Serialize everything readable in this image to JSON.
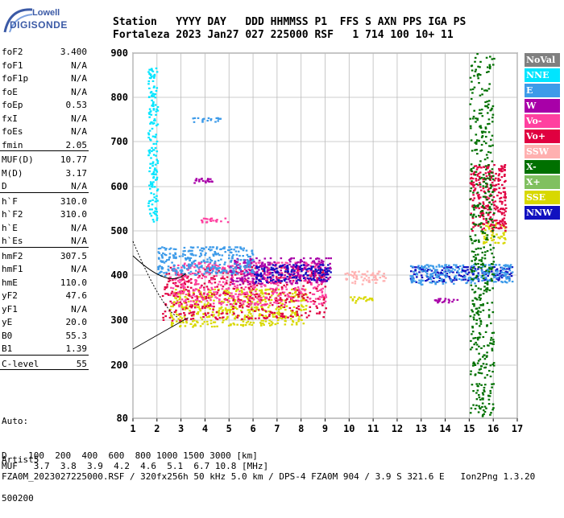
{
  "logo": {
    "line1": "Lowell",
    "line2": "DIGISONDE"
  },
  "header": {
    "labels_line": "Station   YYYY DAY   DDD HHMMSS P1  FFS S AXN PPS IGA PS",
    "values_line": "Fortaleza 2023 Jan27 027 225000 RSF   1 714 100 10+ 11"
  },
  "params": [
    {
      "label": "foF2",
      "value": "3.400"
    },
    {
      "label": "foF1",
      "value": "N/A"
    },
    {
      "label": "foF1p",
      "value": "N/A"
    },
    {
      "label": "foE",
      "value": "N/A"
    },
    {
      "label": "foEp",
      "value": "0.53"
    },
    {
      "label": "fxI",
      "value": "N/A"
    },
    {
      "label": "foEs",
      "value": "N/A"
    },
    {
      "label": "fmin",
      "value": "2.05"
    },
    {
      "label": "MUF(D)",
      "value": "10.77"
    },
    {
      "label": "M(D)",
      "value": "3.17"
    },
    {
      "label": "D",
      "value": "N/A"
    },
    {
      "label": "h`F",
      "value": "310.0"
    },
    {
      "label": "h`F2",
      "value": "310.0"
    },
    {
      "label": "h`E",
      "value": "N/A"
    },
    {
      "label": "h`Es",
      "value": "N/A"
    },
    {
      "label": "hmF2",
      "value": "307.5"
    },
    {
      "label": "hmF1",
      "value": "N/A"
    },
    {
      "label": "hmE",
      "value": "110.0"
    },
    {
      "label": "yF2",
      "value": "47.6"
    },
    {
      "label": "yF1",
      "value": "N/A"
    },
    {
      "label": "yE",
      "value": "20.0"
    },
    {
      "label": "B0",
      "value": "55.3"
    },
    {
      "label": "B1",
      "value": "1.39"
    },
    {
      "label": "C-level",
      "value": "55"
    }
  ],
  "auto_block": {
    "line1": "Auto:",
    "line2": "Artist5",
    "line3": "500200"
  },
  "legend": [
    {
      "label": "NoVal",
      "color": "#808080"
    },
    {
      "label": "NNE",
      "color": "#00e5ff"
    },
    {
      "label": "E",
      "color": "#3d9be9"
    },
    {
      "label": "W",
      "color": "#a800a8"
    },
    {
      "label": "Vo-",
      "color": "#ff40a0"
    },
    {
      "label": "Vo+",
      "color": "#e00040"
    },
    {
      "label": "SSW",
      "color": "#ffb0b0"
    },
    {
      "label": "X-",
      "color": "#007000"
    },
    {
      "label": "X+",
      "color": "#80c060"
    },
    {
      "label": "SSE",
      "color": "#d8d800"
    },
    {
      "label": "NNW",
      "color": "#1010c0"
    }
  ],
  "footer": {
    "line1": "D    100  200  400  600  800 1000 1500 3000 [km]",
    "line2": "MUF   3.7  3.8  3.9  4.2  4.6  5.1  6.7 10.8 [MHz]",
    "line3": "FZA0M_2023027225000.RSF / 320fx256h 50 kHz 5.0 km / DPS-4 FZA0M 904 / 3.9 S 321.6 E   Ion2Png 1.3.20"
  },
  "chart_data": {
    "type": "scatter",
    "title": "",
    "xlabel": "",
    "ylabel": "",
    "xlim": [
      1,
      17
    ],
    "ylim": [
      80,
      900
    ],
    "xticks": [
      "1",
      "2",
      "3",
      "4",
      "5",
      "6",
      "7",
      "8",
      "9",
      "10",
      "11",
      "12",
      "13",
      "14",
      "15",
      "16",
      "17"
    ],
    "yticks": [
      "80",
      "200",
      "300",
      "400",
      "500",
      "600",
      "700",
      "800",
      "900"
    ],
    "y_tick_values": [
      80,
      200,
      300,
      400,
      500,
      600,
      700,
      800,
      900
    ],
    "grid": true,
    "series": [
      {
        "name": "SSE",
        "color": "#d8d800",
        "clusters": [
          [
            2.5,
            8.2,
            285,
            370
          ],
          [
            10,
            11,
            340,
            355
          ],
          [
            15.5,
            16.5,
            470,
            520
          ]
        ]
      },
      {
        "name": "Vo+",
        "color": "#e00040",
        "clusters": [
          [
            2.2,
            9.0,
            300,
            420
          ],
          [
            15,
            16.5,
            500,
            650
          ]
        ]
      },
      {
        "name": "Vo-",
        "color": "#ff40a0",
        "clusters": [
          [
            2.5,
            9.0,
            330,
            430
          ],
          [
            3.8,
            5.0,
            520,
            530
          ]
        ]
      },
      {
        "name": "W",
        "color": "#a800a8",
        "clusters": [
          [
            5,
            9.2,
            380,
            440
          ],
          [
            3.5,
            4.3,
            610,
            620
          ],
          [
            13.5,
            14.5,
            340,
            350
          ]
        ]
      },
      {
        "name": "NNW",
        "color": "#1010c0",
        "clusters": [
          [
            6,
            9.2,
            385,
            425
          ],
          [
            12.5,
            16.8,
            385,
            420
          ]
        ]
      },
      {
        "name": "E",
        "color": "#3d9be9",
        "clusters": [
          [
            2.0,
            6.0,
            400,
            465
          ],
          [
            12.5,
            16.8,
            380,
            425
          ],
          [
            3.3,
            4.7,
            745,
            755
          ]
        ]
      },
      {
        "name": "NNE",
        "color": "#00e5ff",
        "clusters": [
          [
            1.6,
            2.0,
            520,
            870
          ]
        ]
      },
      {
        "name": "X-",
        "color": "#007000",
        "clusters": [
          [
            15,
            16.0,
            80,
            900
          ]
        ]
      },
      {
        "name": "SSW",
        "color": "#ffb0b0",
        "clusters": [
          [
            9.8,
            11.5,
            380,
            410
          ]
        ]
      }
    ]
  }
}
